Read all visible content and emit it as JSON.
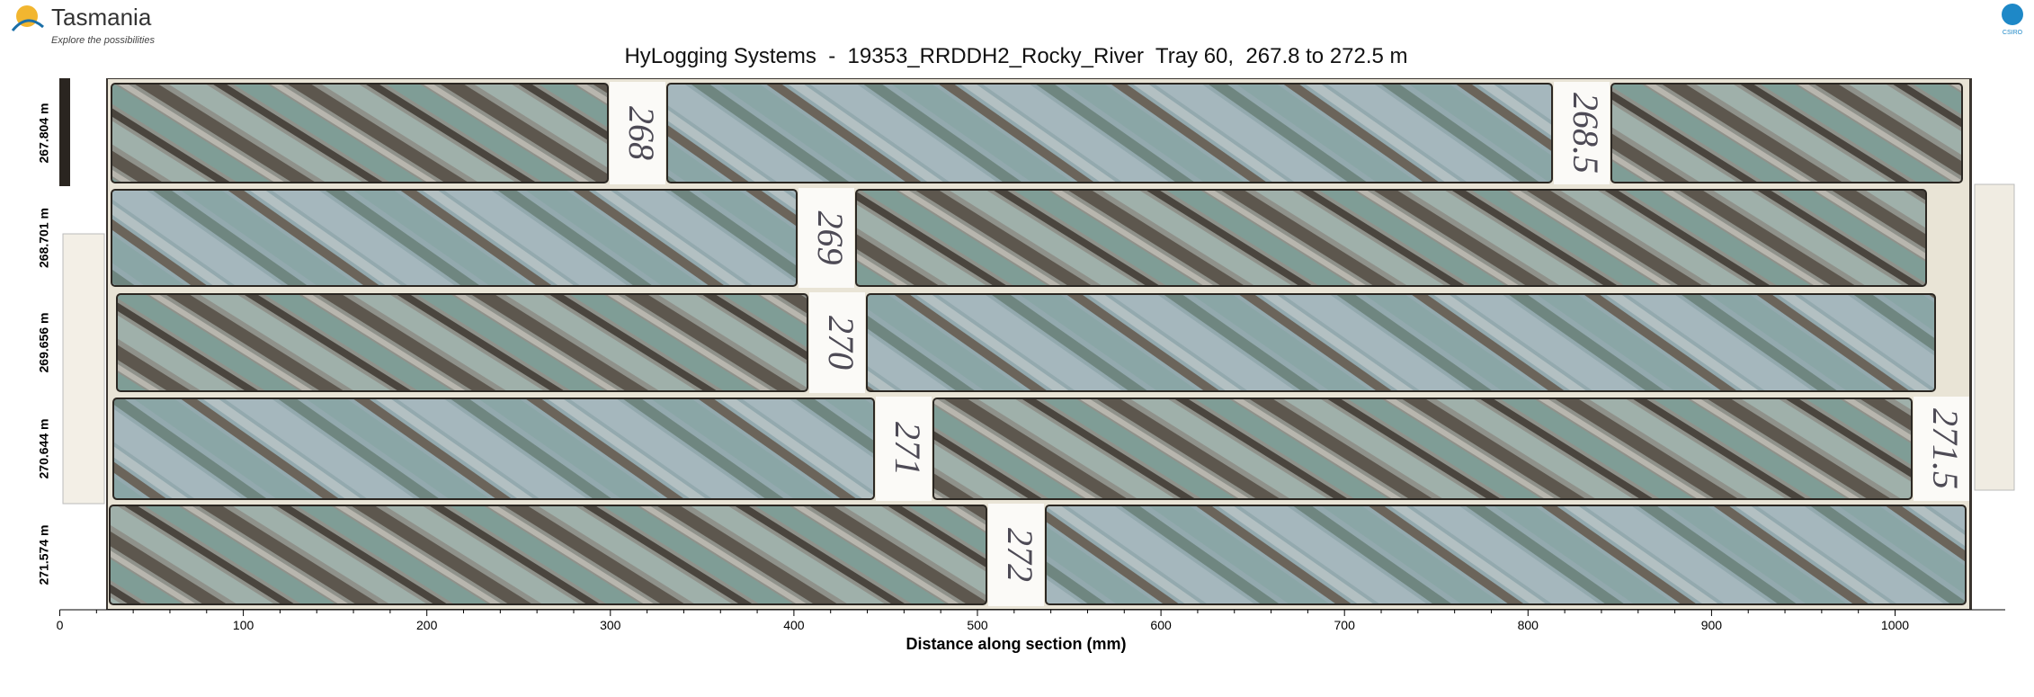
{
  "header": {
    "logo_text": "Tasmania",
    "logo_tagline": "Explore the possibilities",
    "partner_logo": "CSIRO",
    "title": "HyLogging Systems  -  19353_RRDDH2_Rocky_River  Tray 60,  267.8 to 272.5 m"
  },
  "rows": [
    {
      "depth_label": "267.804 m",
      "markers": [
        "268",
        "268.5"
      ]
    },
    {
      "depth_label": "268.701 m",
      "markers": [
        "269"
      ]
    },
    {
      "depth_label": "269.656 m",
      "markers": [
        "270"
      ]
    },
    {
      "depth_label": "270.644 m",
      "markers": [
        "271",
        "271.5"
      ]
    },
    {
      "depth_label": "271.574 m",
      "markers": [
        "272"
      ]
    }
  ],
  "x_axis": {
    "label": "Distance along section (mm)",
    "ticks": [
      0,
      100,
      200,
      300,
      400,
      500,
      600,
      700,
      800,
      900,
      1000
    ]
  }
}
